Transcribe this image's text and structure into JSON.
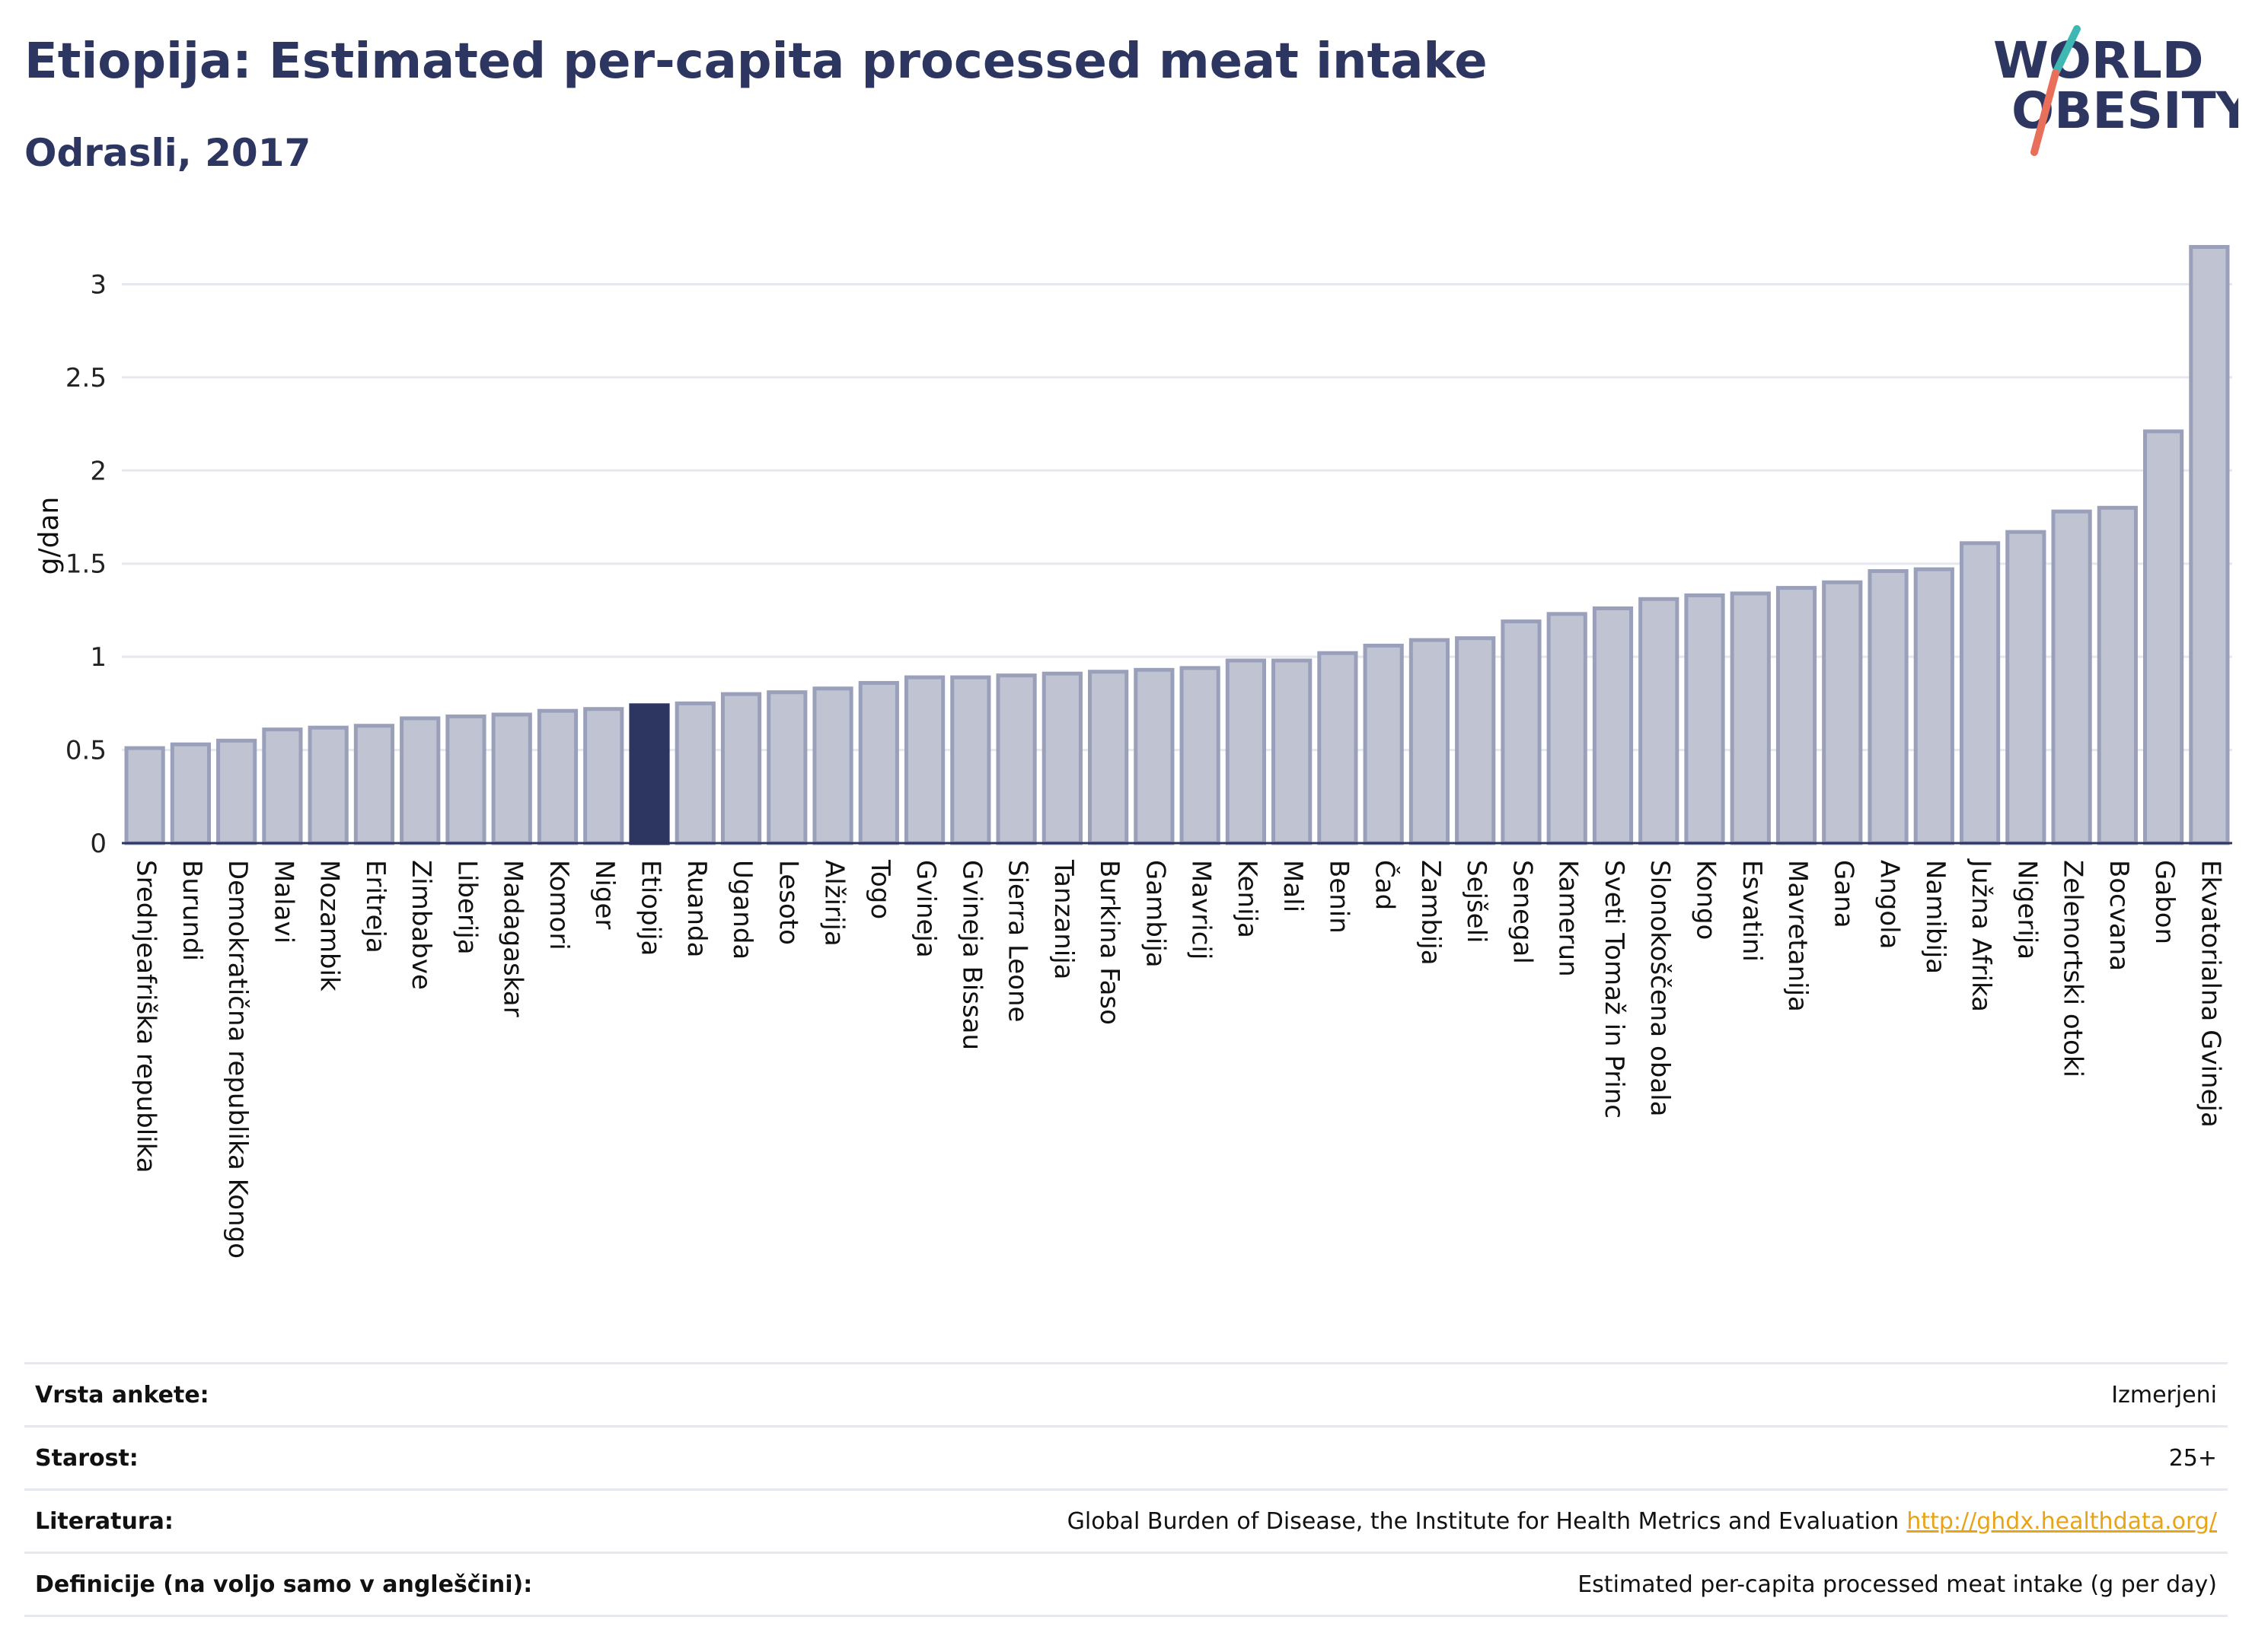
{
  "header": {
    "title": "Etiopija: Estimated per-capita processed meat intake",
    "subtitle": "Odrasli, 2017",
    "logo_line1": "WORLD",
    "logo_line2": "OBESITY"
  },
  "colors": {
    "title": "#2d3561",
    "bar": "#bfc3d2",
    "bar_border": "#9aa0ba",
    "highlight": "#2d3561",
    "grid": "#e6e8ef",
    "axis": "#2d3561",
    "link": "#e8a317",
    "logo_teal": "#3fb8b4",
    "logo_coral": "#e8705a"
  },
  "chart_data": {
    "type": "bar",
    "title": "Etiopija: Estimated per-capita processed meat intake",
    "subtitle": "Odrasli, 2017",
    "ylabel": "g/dan",
    "xlabel": "",
    "ylim": [
      0,
      3.3
    ],
    "yticks": [
      0,
      0.5,
      1,
      1.5,
      2,
      2.5,
      3
    ],
    "ytick_labels": [
      "0",
      "0.5",
      "1",
      "1.5",
      "2",
      "2.5",
      "3"
    ],
    "grid": true,
    "legend": "none",
    "highlight": "Etiopija",
    "categories": [
      "Srednjeafriška republika",
      "Burundi",
      "Demokratična republika Kongo",
      "Malavi",
      "Mozambik",
      "Eritreja",
      "Zimbabve",
      "Liberija",
      "Madagaskar",
      "Komori",
      "Niger",
      "Etiopija",
      "Ruanda",
      "Uganda",
      "Lesoto",
      "Alžirija",
      "Togo",
      "Gvineja",
      "Gvineja Bissau",
      "Sierra Leone",
      "Tanzanija",
      "Burkina Faso",
      "Gambija",
      "Mavricij",
      "Kenija",
      "Mali",
      "Benin",
      "Čad",
      "Zambija",
      "Sejšeli",
      "Senegal",
      "Kamerun",
      "Sveti Tomaž in Princ",
      "Slonokoščena obala",
      "Kongo",
      "Esvatini",
      "Mavretanija",
      "Gana",
      "Angola",
      "Namibija",
      "Južna Afrika",
      "Nigerija",
      "Zelenortski otoki",
      "Bocvana",
      "Gabon",
      "Ekvatorialna Gvineja"
    ],
    "values": [
      0.51,
      0.53,
      0.55,
      0.61,
      0.62,
      0.63,
      0.67,
      0.68,
      0.69,
      0.71,
      0.72,
      0.74,
      0.75,
      0.8,
      0.81,
      0.83,
      0.86,
      0.89,
      0.89,
      0.9,
      0.91,
      0.92,
      0.93,
      0.94,
      0.98,
      0.98,
      1.02,
      1.06,
      1.09,
      1.1,
      1.19,
      1.23,
      1.26,
      1.31,
      1.33,
      1.34,
      1.37,
      1.4,
      1.46,
      1.47,
      1.61,
      1.67,
      1.78,
      1.8,
      2.21,
      3.2
    ]
  },
  "info_table": [
    {
      "label": "Vrsta ankete:",
      "value": "Izmerjeni"
    },
    {
      "label": "Starost:",
      "value": "25+"
    },
    {
      "label": "Literatura:",
      "value": "Global Burden of Disease, the Institute for Health Metrics and Evaluation",
      "link": "http://ghdx.healthdata.org/"
    },
    {
      "label": "Definicije (na voljo samo v angleščini):",
      "value": "Estimated per-capita processed meat intake (g per day)"
    }
  ]
}
